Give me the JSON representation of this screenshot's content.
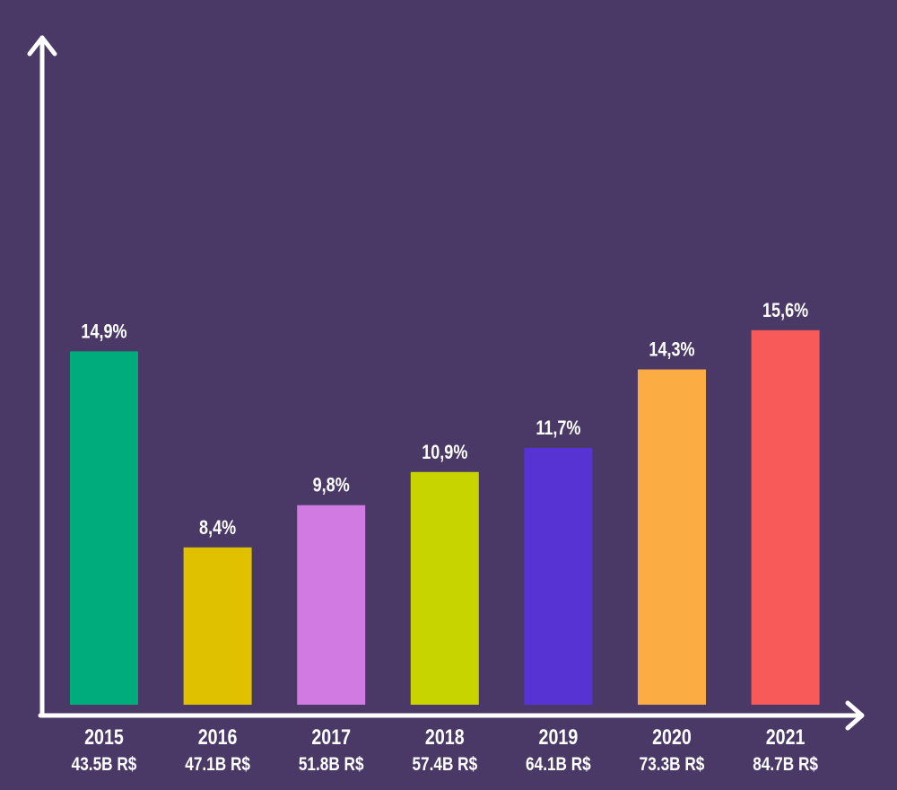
{
  "chart_data": {
    "type": "bar",
    "title": "",
    "xlabel": "",
    "ylabel": "",
    "categories": [
      "2015",
      "2016",
      "2017",
      "2018",
      "2019",
      "2020",
      "2021"
    ],
    "sublabels": [
      "43.5B R$",
      "47.1B R$",
      "51.8B R$",
      "57.4B R$",
      "64.1B R$",
      "73.3B R$",
      "84.7B R$"
    ],
    "values": [
      14.9,
      8.4,
      9.8,
      10.9,
      11.7,
      14.3,
      15.6
    ],
    "data_labels": [
      "14,9%",
      "8,4%",
      "9,8%",
      "10,9%",
      "11,7%",
      "14,3%",
      "15,6%"
    ],
    "colors": [
      "#00ab7c",
      "#e0c100",
      "#d07ae2",
      "#c8d400",
      "#5733d4",
      "#fbac42",
      "#f85a5a"
    ],
    "grid": false,
    "axis_color": "#ffffff",
    "background": "#4a3966"
  }
}
